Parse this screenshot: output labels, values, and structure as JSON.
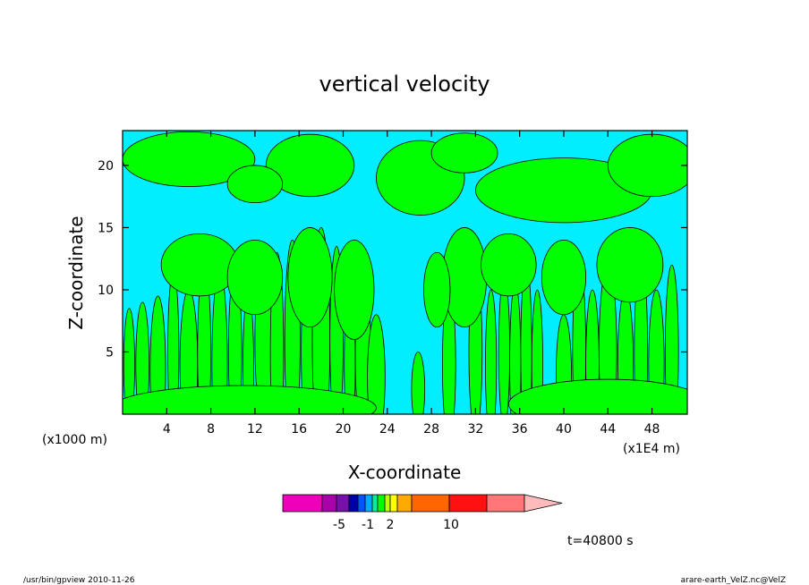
{
  "chart_data": {
    "type": "heatmap",
    "title": "vertical velocity",
    "xlabel": "X-coordinate",
    "ylabel": "Z-coordinate",
    "x_unit_left": "(x1000 m)",
    "x_unit_right": "(x1E4 m)",
    "xlim": [
      0,
      51.2
    ],
    "ylim": [
      0,
      22.8
    ],
    "x_ticks": [
      4,
      8,
      12,
      16,
      20,
      24,
      28,
      32,
      36,
      40,
      44,
      48
    ],
    "y_ticks": [
      5,
      10,
      15,
      20
    ],
    "fill_colors": {
      "positive_region": "#00ff00",
      "negative_region": "#00eeff",
      "contour_line": "#000000"
    },
    "colorbar": {
      "colors": [
        "#ee00bb",
        "#aa00aa",
        "#7711aa",
        "#0000aa",
        "#0055ff",
        "#00aaff",
        "#00ee99",
        "#00ff00",
        "#bbff00",
        "#ffff00",
        "#ffaa00",
        "#ff6600",
        "#ff1111",
        "#ff7777",
        "#ffbbbb"
      ],
      "labels": [
        "-5",
        "-1",
        "2",
        "10"
      ],
      "extend": "right"
    },
    "time_label": "t=40800 s"
  },
  "footer": {
    "left": "/usr/bin/gpview   2010-11-26",
    "right": "arare-earth_VelZ.nc@VelZ"
  }
}
